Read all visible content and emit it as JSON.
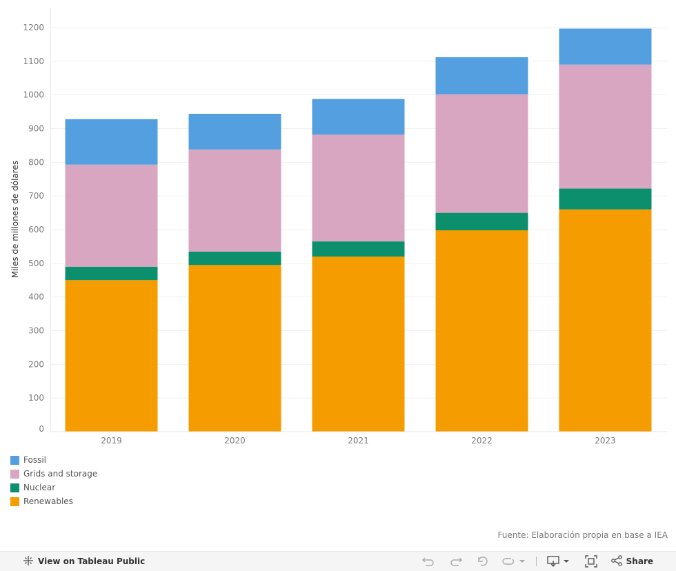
{
  "chart_data": {
    "type": "bar",
    "stacked": true,
    "categories": [
      "2019",
      "2020",
      "2021",
      "2022",
      "2023"
    ],
    "series": [
      {
        "name": "Renewables",
        "color": "#f59d00",
        "values": [
          450,
          495,
          520,
          598,
          660
        ]
      },
      {
        "name": "Nuclear",
        "color": "#0b8f6d",
        "values": [
          40,
          40,
          45,
          52,
          62
        ]
      },
      {
        "name": "Grids and storage",
        "color": "#d8a6c0",
        "values": [
          303,
          303,
          317,
          352,
          368
        ]
      },
      {
        "name": "Fossil",
        "color": "#539fe0",
        "values": [
          135,
          106,
          106,
          110,
          107
        ]
      }
    ],
    "ylabel": "Miles de millones de dólares",
    "xlabel": "",
    "ylim": [
      0,
      1200
    ],
    "yticks": [
      0,
      100,
      200,
      300,
      400,
      500,
      600,
      700,
      800,
      900,
      1000,
      1100,
      1200
    ],
    "grid": true,
    "legend_position": "bottom-left",
    "legend_order": [
      "Fossil",
      "Grids and storage",
      "Nuclear",
      "Renewables"
    ]
  },
  "source": "Fuente: Elaboración propia en base a IEA",
  "toolbar": {
    "view_label": "View on Tableau Public",
    "share_label": "Share"
  }
}
